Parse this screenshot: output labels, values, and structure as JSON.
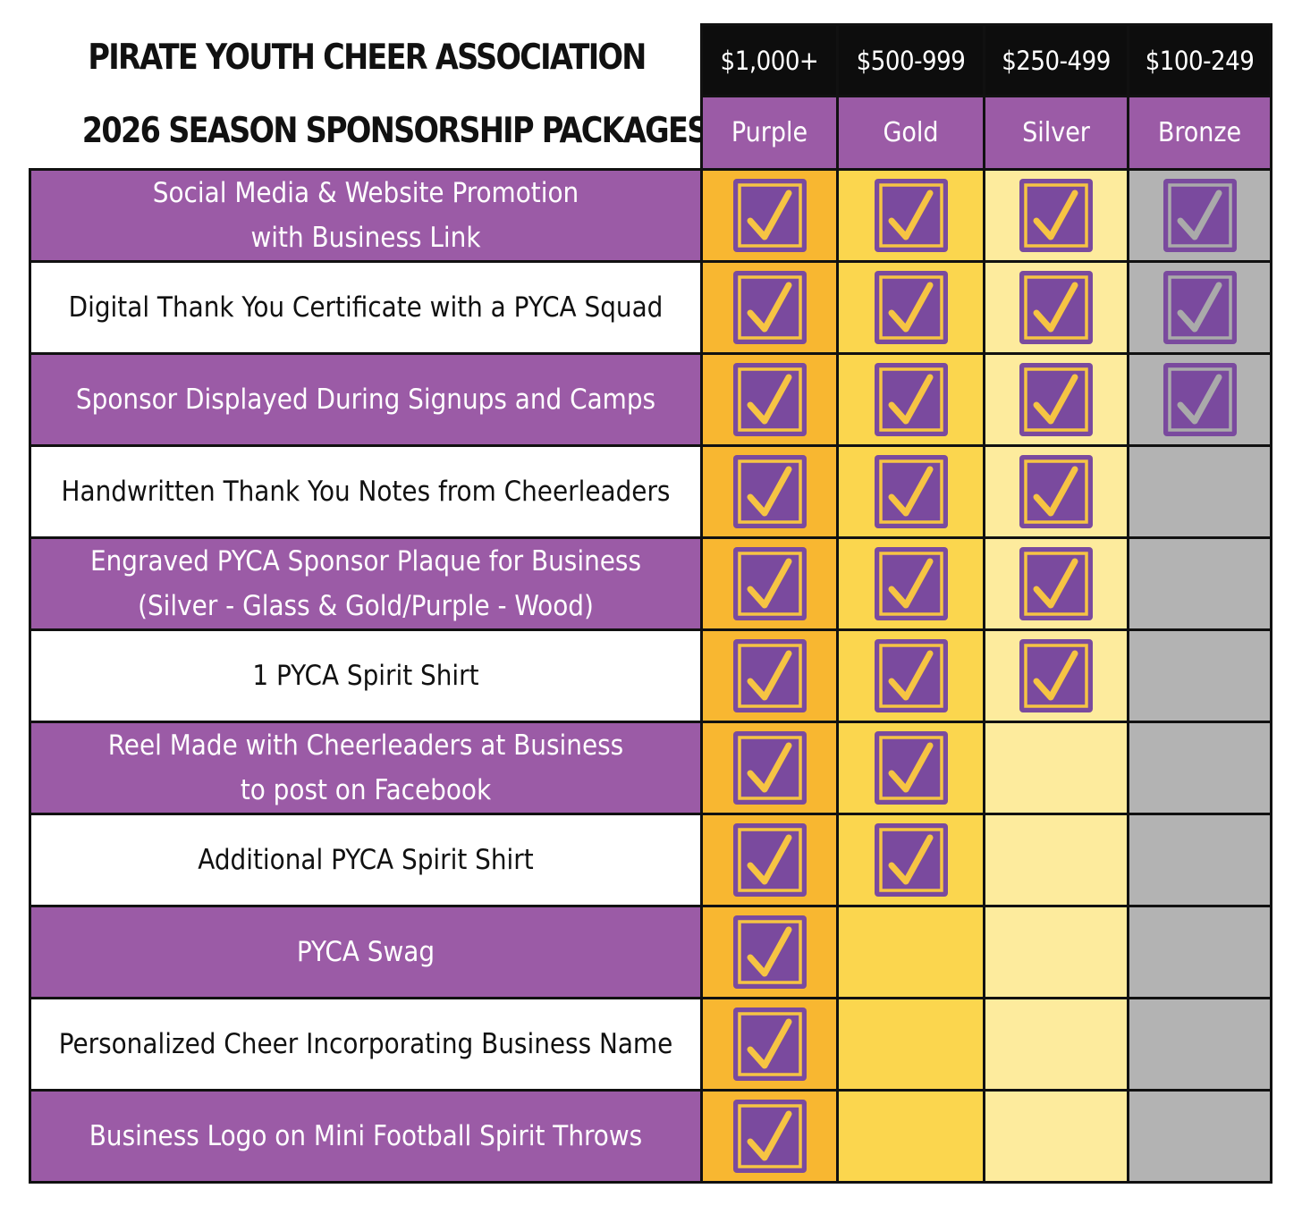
{
  "header": {
    "title_line1": "PIRATE YOUTH CHEER ASSOCIATION",
    "title_line2": "2026 SEASON SPONSORSHIP PACKAGES"
  },
  "tiers": [
    {
      "price": "$1,000+",
      "name": "Purple",
      "column_color": "#f8b731"
    },
    {
      "price": "$500-999",
      "name": "Gold",
      "column_color": "#fbd64e"
    },
    {
      "price": "$250-499",
      "name": "Silver",
      "column_color": "#fdeb9d"
    },
    {
      "price": "$100-249",
      "name": "Bronze",
      "column_color": "#b3b3b3"
    }
  ],
  "benefits": [
    {
      "label": "Social Media & Website Promotion\nwith Business Link",
      "included": [
        true,
        true,
        true,
        true
      ]
    },
    {
      "label": "Digital Thank You Certificate with a PYCA Squad",
      "included": [
        true,
        true,
        true,
        true
      ]
    },
    {
      "label": "Sponsor Displayed During Signups and Camps",
      "included": [
        true,
        true,
        true,
        true
      ]
    },
    {
      "label": "Handwritten Thank You Notes from Cheerleaders",
      "included": [
        true,
        true,
        true,
        false
      ]
    },
    {
      "label": "Engraved PYCA Sponsor Plaque for Business\n(Silver - Glass & Gold/Purple - Wood)",
      "included": [
        true,
        true,
        true,
        false
      ]
    },
    {
      "label": "1 PYCA Spirit Shirt",
      "included": [
        true,
        true,
        true,
        false
      ]
    },
    {
      "label": "Reel Made with Cheerleaders at Business\nto post on Facebook",
      "included": [
        true,
        true,
        false,
        false
      ]
    },
    {
      "label": "Additional PYCA Spirit Shirt",
      "included": [
        true,
        true,
        false,
        false
      ]
    },
    {
      "label": "PYCA Swag",
      "included": [
        true,
        false,
        false,
        false
      ]
    },
    {
      "label": "Personalized Cheer Incorporating Business Name",
      "included": [
        true,
        false,
        false,
        false
      ]
    },
    {
      "label": "Business Logo on Mini Football Spirit Throws",
      "included": [
        true,
        false,
        false,
        false
      ]
    }
  ],
  "colors": {
    "purple": "#9b5ba6",
    "checkbox_fill": "#7a4a9e",
    "check_gold": "#f6c443",
    "check_silver": "#aaaaaa"
  },
  "icons": {
    "included": "checkbox-checked-icon"
  }
}
